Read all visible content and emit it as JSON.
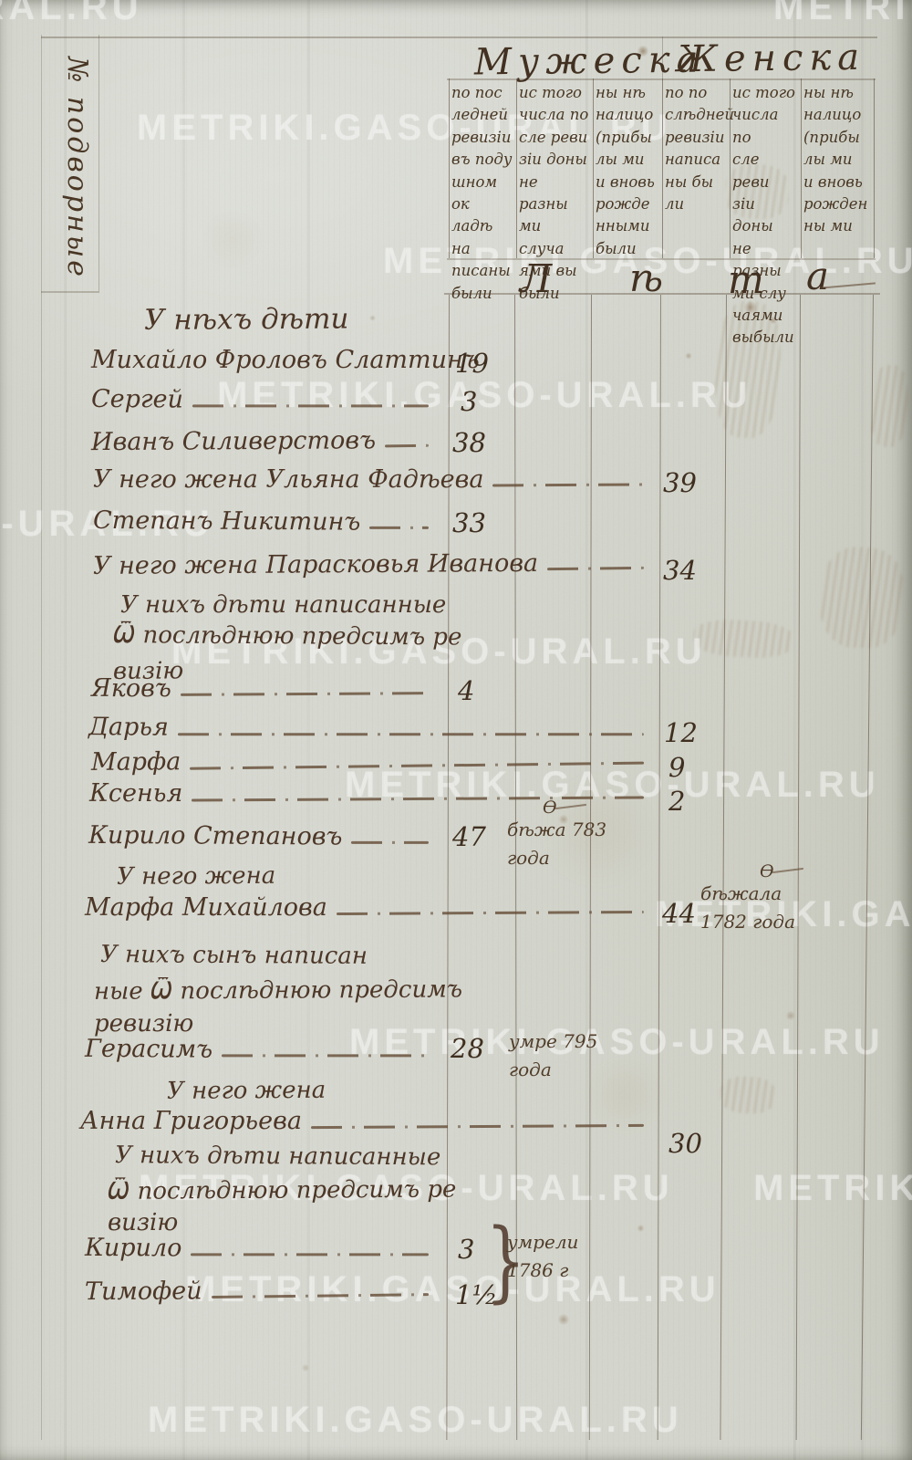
{
  "watermark_text": "METRIKI.GASO-URAL.RU",
  "sidebar": {
    "label": "№ подворные"
  },
  "header": {
    "male_title": "Мужеска",
    "female_title": "Женска",
    "male_columns": [
      "по пос\nледней\nревизіи\nвъ поду\nшном ок\nладѣ на\nписаны\nбыли",
      "ис того\nчисла по\nсле реви\nзіи доны\nне разны\nми случа\nями вы\nбыли",
      "ны нѣ\nналицо\n(прибы\nлы ми\nи вновь\nрожде\nнными\nбыли"
    ],
    "female_columns": [
      "по по\nслѣдней\nревизіи\nнаписа\nны бы\nли",
      "ис того\nчисла по\nсле реви\nзіи доны\nне разны\nми слу\nчаями\nвыбыли",
      "ны нѣ\nналицо\n(прибы\nлы ми\nи вновь\nрожден\nны ми"
    ],
    "age_band": {
      "letters": [
        "Л",
        "ѣ",
        "т",
        "а"
      ]
    }
  },
  "body": {
    "rows": [
      {
        "text": "У нѣхъ дѣти"
      },
      {
        "text": "Михайло Фроловъ Слаттинъ",
        "age": "19"
      },
      {
        "text": "Сергей",
        "age": "3"
      },
      {
        "text": "Иванъ Силиверстовъ",
        "age": "38"
      },
      {
        "text": "У него жена Ульяна Фадѣева",
        "age": "39"
      },
      {
        "text": "Степанъ Никитинъ",
        "age": "33"
      },
      {
        "text": "У него жена Парасковья Иванова",
        "age": "34"
      },
      {
        "text": "У нихъ дѣти написанные"
      },
      {
        "text": "Ѿ послѣднюю предсимъ ре"
      },
      {
        "text": "визію"
      },
      {
        "text": "Яковъ",
        "age": "4"
      },
      {
        "text": "Дарья",
        "age": "12"
      },
      {
        "text": "Марфа",
        "age": "9"
      },
      {
        "text": "Ксенья",
        "age": "2"
      },
      {
        "text": "Кирило Степановъ",
        "age": "47",
        "note": "бѣжа 783\nгода",
        "flourish": "Ѳ"
      },
      {
        "text": "У него жена"
      },
      {
        "text": "Марфа Михайлова",
        "age": "44",
        "note": "бѣжала\n1782 года",
        "flourish": "Ѳ"
      },
      {
        "text": "У нихъ сынъ написан"
      },
      {
        "text": "ные Ѿ послѣднюю предсимъ"
      },
      {
        "text": "ревизію"
      },
      {
        "text": "Герасимъ",
        "age": "28",
        "note": "умре 795\nгода"
      },
      {
        "text": "У него жена"
      },
      {
        "text": "Анна Григорьева",
        "age": "30"
      },
      {
        "text": "У нихъ дѣти написанные"
      },
      {
        "text": "Ѿ послѣднюю предсимъ ре"
      },
      {
        "text": "визію"
      },
      {
        "text": "Кирило",
        "age": "3"
      },
      {
        "text": "Тимофей",
        "age": "1½"
      }
    ],
    "group_note": {
      "brace": "}",
      "text": "умрели\n1786 г"
    }
  }
}
